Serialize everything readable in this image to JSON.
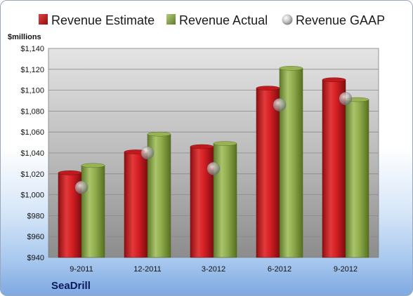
{
  "chart_data": {
    "type": "bar",
    "title": "",
    "unit_label": "$millions",
    "company": "SeaDrill",
    "categories": [
      "9-2011",
      "12-2011",
      "3-2012",
      "6-2012",
      "9-2012"
    ],
    "series": [
      {
        "name": "Revenue Estimate",
        "kind": "bar",
        "color": "#cc1f1f",
        "values": [
          1021,
          1041,
          1046,
          1102,
          1110
        ]
      },
      {
        "name": "Revenue Actual",
        "kind": "bar",
        "color": "#8aa84a",
        "values": [
          1028,
          1058,
          1049,
          1121,
          1091
        ]
      },
      {
        "name": "Revenue GAAP",
        "kind": "marker",
        "color": "#a6a6a6",
        "values": [
          1007,
          1040,
          1025,
          1086,
          1092
        ]
      }
    ],
    "ylim": [
      940,
      1140
    ],
    "yticks": [
      940,
      960,
      980,
      1000,
      1020,
      1040,
      1060,
      1080,
      1100,
      1120,
      1140
    ],
    "ytick_labels": [
      "$940",
      "$960",
      "$980",
      "$1,000",
      "$1,020",
      "$1,040",
      "$1,060",
      "$1,080",
      "$1,100",
      "$1,120",
      "$1,140"
    ],
    "grid": true,
    "legend_position": "top"
  }
}
